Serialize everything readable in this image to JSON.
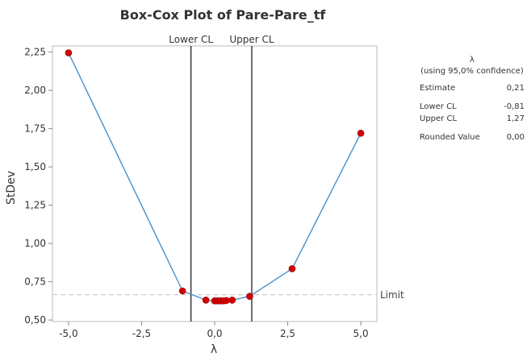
{
  "chart_data": {
    "type": "line",
    "title": "Box-Cox Plot of Pare-Pare_tf",
    "xlabel": "λ",
    "ylabel": "StDev",
    "xlim": [
      -5.55,
      5.55
    ],
    "ylim": [
      0.49,
      2.29
    ],
    "xticks": [
      -5.0,
      -2.5,
      0.0,
      2.5,
      5.0
    ],
    "xtick_labels": [
      "-5,0",
      "-2,5",
      "0,0",
      "2,5",
      "5,0"
    ],
    "yticks": [
      0.5,
      0.75,
      1.0,
      1.25,
      1.5,
      1.75,
      2.0,
      2.25
    ],
    "ytick_labels": [
      "0,50",
      "0,75",
      "1,00",
      "1,25",
      "1,50",
      "1,75",
      "2,00",
      "2,25"
    ],
    "series": [
      {
        "x": [
          -5.0,
          -1.1,
          -0.3,
          0.0,
          0.1,
          0.2,
          0.3,
          0.4,
          0.6,
          1.2,
          2.65,
          5.0
        ],
        "y": [
          2.245,
          0.69,
          0.63,
          0.625,
          0.625,
          0.625,
          0.625,
          0.627,
          0.63,
          0.655,
          0.835,
          1.72
        ]
      }
    ],
    "vlines": [
      {
        "x": -0.81,
        "label": "Lower CL"
      },
      {
        "x": 1.27,
        "label": "Upper CL"
      }
    ],
    "hline": {
      "y": 0.665,
      "label": "Limit"
    },
    "colors": {
      "line": "#4a90c8",
      "marker": "#d40000",
      "marker_edge": "#8b0000",
      "limit": "#bdbdbd"
    },
    "grid": false
  },
  "panel": {
    "heading": "λ",
    "subheading": "(using 95,0% confidence)",
    "rows": [
      {
        "label": "Estimate",
        "value": "0,21"
      },
      {
        "label": "Lower CL",
        "value": "-0,81"
      },
      {
        "label": "Upper CL",
        "value": "1,27"
      },
      {
        "label": "Rounded Value",
        "value": "0,00"
      }
    ]
  }
}
